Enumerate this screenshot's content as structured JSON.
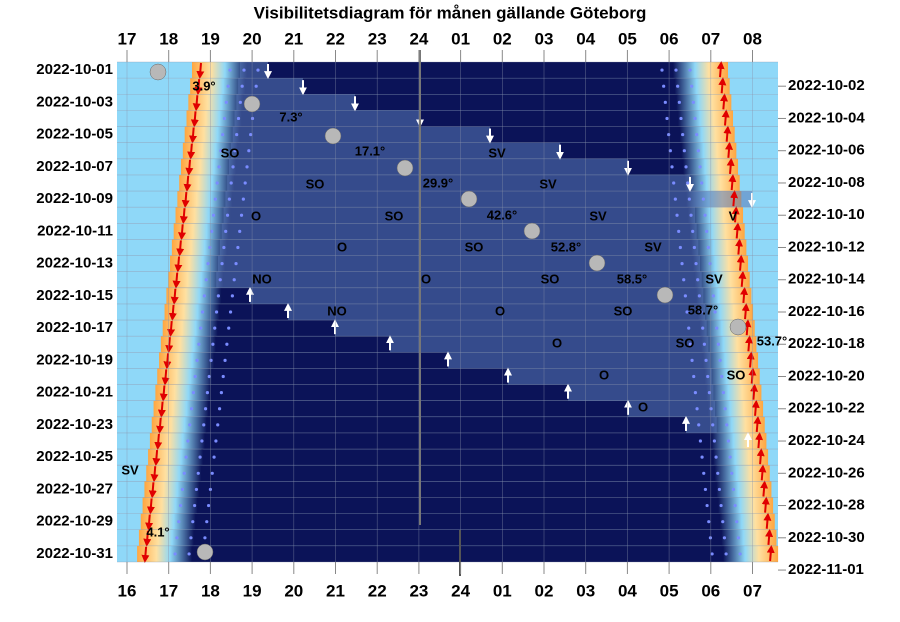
{
  "header": {
    "title": "Visibilitetsdiagram för månen gällande Göteborg"
  },
  "top_hours": [
    "17",
    "18",
    "19",
    "20",
    "21",
    "22",
    "23",
    "24",
    "01",
    "02",
    "03",
    "04",
    "05",
    "06",
    "07",
    "08"
  ],
  "bottom_hours": [
    "16",
    "17",
    "18",
    "19",
    "20",
    "21",
    "22",
    "23",
    "24",
    "01",
    "02",
    "03",
    "04",
    "05",
    "06",
    "07"
  ],
  "left_dates": [
    "2022-10-01",
    "2022-10-03",
    "2022-10-05",
    "2022-10-07",
    "2022-10-09",
    "2022-10-11",
    "2022-10-13",
    "2022-10-15",
    "2022-10-17",
    "2022-10-19",
    "2022-10-21",
    "2022-10-23",
    "2022-10-25",
    "2022-10-27",
    "2022-10-29",
    "2022-10-31"
  ],
  "right_dates": [
    "2022-10-02",
    "2022-10-04",
    "2022-10-06",
    "2022-10-08",
    "2022-10-10",
    "2022-10-12",
    "2022-10-14",
    "2022-10-16",
    "2022-10-18",
    "2022-10-20",
    "2022-10-22",
    "2022-10-24",
    "2022-10-26",
    "2022-10-28",
    "2022-10-30",
    "2022-11-01"
  ],
  "altitudes": [
    "3.9°",
    "7.3°",
    "17.1°",
    "29.9°",
    "42.6°",
    "52.8°",
    "58.5°",
    "58.7°",
    "53.7°",
    "4.1°"
  ],
  "directions": [
    "SO",
    "SV",
    "SO",
    "SV",
    "O",
    "SO",
    "SV",
    "V",
    "O",
    "SO",
    "SV",
    "NO",
    "O",
    "SO",
    "SV",
    "NO",
    "O",
    "SO",
    "O",
    "SO",
    "O",
    "SO",
    "O",
    "SV"
  ]
}
